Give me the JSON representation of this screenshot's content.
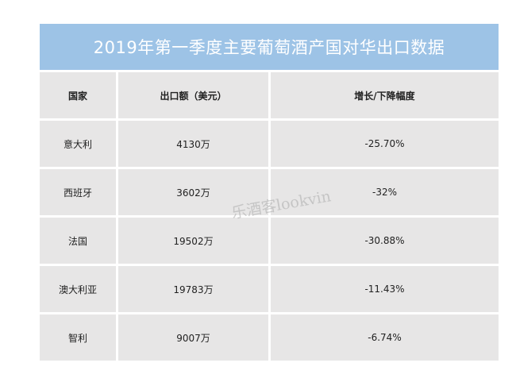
{
  "title": "2019年第一季度主要葡萄酒产国对华出口数据",
  "colors": {
    "title_bg": "#9dc3e6",
    "cell_bg": "#e7e6e6"
  },
  "columns": [
    "国家",
    "出口额（美元）",
    "增长/下降幅度"
  ],
  "rows": [
    [
      "意大利",
      "4130万",
      "-25.70%"
    ],
    [
      "西班牙",
      "3602万",
      "-32%"
    ],
    [
      "法国",
      "19502万",
      "-30.88%"
    ],
    [
      "澳大利亚",
      "19783万",
      "-11.43%"
    ],
    [
      "智利",
      "9007万",
      "-6.74%"
    ]
  ],
  "watermark": "乐酒客lookvin"
}
